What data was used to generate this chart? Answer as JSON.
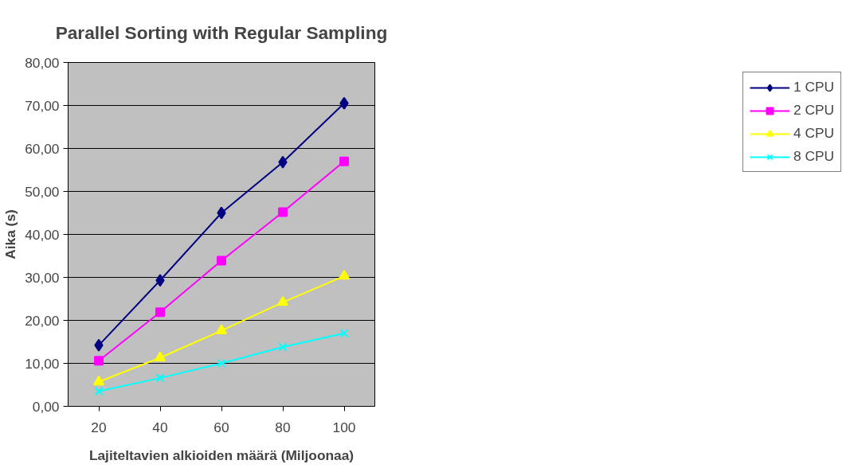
{
  "chart_data": {
    "type": "line",
    "title": "Parallel Sorting with Regular Sampling",
    "xlabel": "Lajiteltavien alkioiden määrä (Miljoonaa)",
    "ylabel": "Aika (s)",
    "categories": [
      "20",
      "40",
      "60",
      "80",
      "100"
    ],
    "series": [
      {
        "name": "1 CPU",
        "color": "#000080",
        "marker": "diamond",
        "values": [
          14.2,
          29.3,
          45.0,
          56.8,
          70.5
        ]
      },
      {
        "name": "2 CPU",
        "color": "#ff00ff",
        "marker": "square",
        "values": [
          10.6,
          21.9,
          33.9,
          45.2,
          57.0
        ]
      },
      {
        "name": "4 CPU",
        "color": "#ffff00",
        "marker": "triangle",
        "values": [
          5.7,
          11.3,
          17.6,
          24.2,
          30.3
        ]
      },
      {
        "name": "8 CPU",
        "color": "#00ffff",
        "marker": "cross",
        "values": [
          3.5,
          6.6,
          10.0,
          13.8,
          17.0
        ]
      }
    ],
    "ylim": [
      0,
      80
    ],
    "yticks": [
      {
        "value": 0,
        "label": "0,00"
      },
      {
        "value": 10,
        "label": "10,00"
      },
      {
        "value": 20,
        "label": "20,00"
      },
      {
        "value": 30,
        "label": "30,00"
      },
      {
        "value": 40,
        "label": "40,00"
      },
      {
        "value": 50,
        "label": "50,00"
      },
      {
        "value": 60,
        "label": "60,00"
      },
      {
        "value": 70,
        "label": "70,00"
      },
      {
        "value": 80,
        "label": "80,00"
      }
    ],
    "grid": "y",
    "legend": "right",
    "line_style": "solid"
  }
}
